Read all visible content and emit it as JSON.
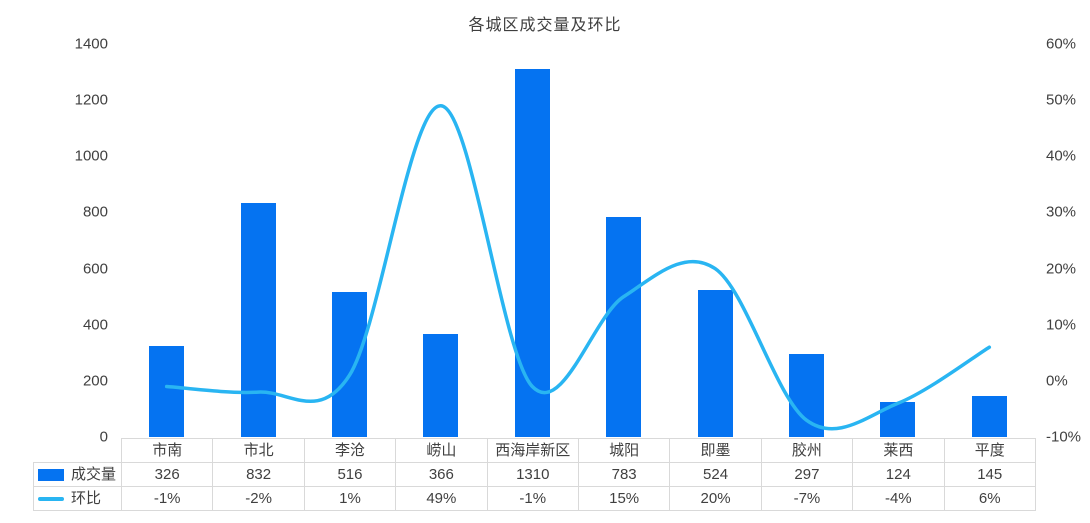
{
  "title": "各城区成交量及环比",
  "chart_data": {
    "type": "combo",
    "categories": [
      "市南",
      "市北",
      "李沧",
      "崂山",
      "西海岸新区",
      "城阳",
      "即墨",
      "胶州",
      "莱西",
      "平度"
    ],
    "series": [
      {
        "name": "成交量",
        "type": "bar",
        "axis": "left",
        "color": "#0573f1",
        "values": [
          326,
          832,
          516,
          366,
          1310,
          783,
          524,
          297,
          124,
          145
        ]
      },
      {
        "name": "环比",
        "type": "line",
        "axis": "right",
        "color": "#29b5f2",
        "smooth": true,
        "values": [
          -1,
          -2,
          1,
          49,
          -1,
          15,
          20,
          -7,
          -4,
          6
        ],
        "display": [
          "-1%",
          "-2%",
          "1%",
          "49%",
          "-1%",
          "15%",
          "20%",
          "-7%",
          "-4%",
          "6%"
        ]
      }
    ],
    "left_axis": {
      "min": 0,
      "max": 1400,
      "step": 200,
      "tick_labels": [
        "1400",
        "1200",
        "1000",
        "800",
        "600",
        "400",
        "200",
        "0"
      ]
    },
    "right_axis": {
      "min": -10,
      "max": 60,
      "step": 10,
      "tick_labels": [
        "60%",
        "50%",
        "40%",
        "30%",
        "20%",
        "10%",
        "0%",
        "-10%"
      ]
    },
    "grid": false,
    "legend_position": "data-table-left",
    "data_table": true
  },
  "colors": {
    "bar": "#0573f1",
    "line": "#29b5f2",
    "text": "#404040",
    "title_text": "#3e3e3e",
    "table_border": "#d9d9d9",
    "background": "#ffffff"
  }
}
